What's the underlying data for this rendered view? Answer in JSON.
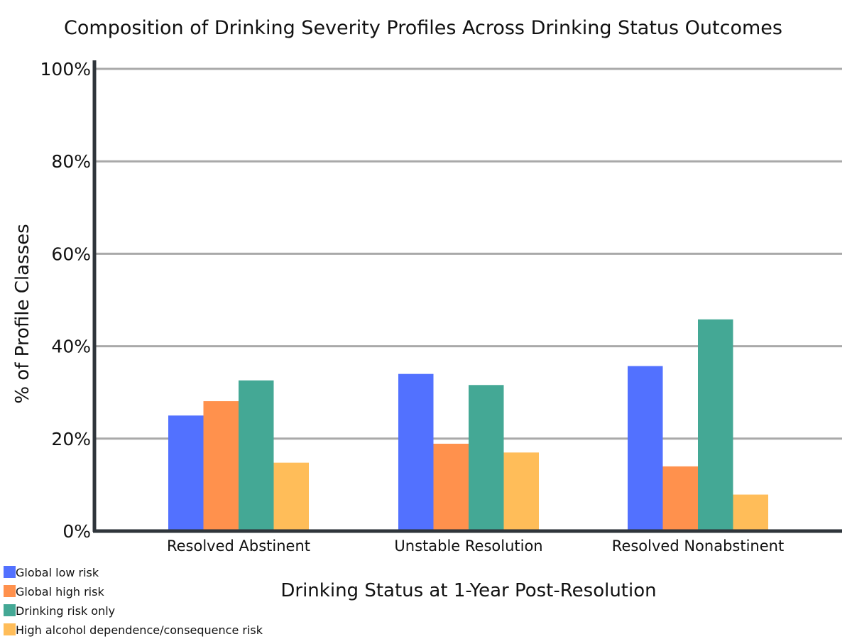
{
  "chart_data": {
    "type": "bar",
    "title": "Composition of Drinking Severity Profiles Across Drinking Status Outcomes",
    "xlabel": "Drinking Status at 1-Year Post-Resolution",
    "ylabel": "% of Profile Classes",
    "categories": [
      "Resolved Abstinent",
      "Unstable Resolution",
      "Resolved Nonabstinent"
    ],
    "ylim": [
      0,
      100
    ],
    "yticks": [
      0,
      20,
      40,
      60,
      80,
      100
    ],
    "ytick_labels": [
      "0%",
      "20%",
      "40%",
      "60%",
      "80%",
      "100%"
    ],
    "grid": "horizontal",
    "legend_position": "bottom-left",
    "series": [
      {
        "name": "Global low risk",
        "color": "#5271ff",
        "values": [
          25,
          34,
          35.7
        ]
      },
      {
        "name": "Global high risk",
        "color": "#ff914d",
        "values": [
          28.1,
          18.9,
          14
        ]
      },
      {
        "name": "Drinking risk only",
        "color": "#44a895",
        "values": [
          32.6,
          31.6,
          45.8
        ]
      },
      {
        "name": "High alcohol dependence/consequence risk",
        "color": "#ffbd59",
        "values": [
          14.8,
          17,
          7.9
        ]
      }
    ]
  }
}
